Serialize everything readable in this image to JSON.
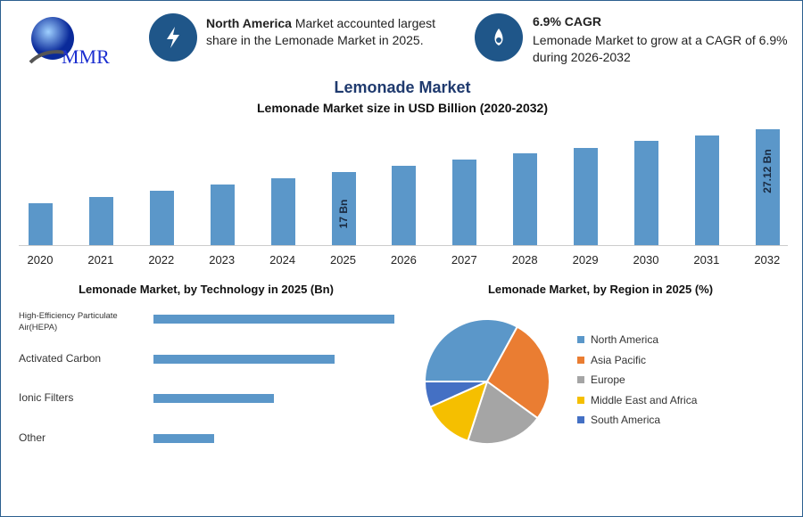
{
  "logo": {
    "text": "MMR"
  },
  "info1": {
    "bold": "North America",
    "text": " Market accounted largest share in the Lemonade Market in 2025.",
    "icon": "lightning-icon"
  },
  "info2": {
    "bold": "6.9% CAGR",
    "text": "Lemonade Market to grow at a CAGR of 6.9% during 2026-2032",
    "icon": "flame-drop-icon"
  },
  "chart_data": [
    {
      "type": "bar",
      "title": "Lemonade Market",
      "subtitle": "Lemonade Market size in USD Billion (2020-2032)",
      "categories": [
        "2020",
        "2021",
        "2022",
        "2023",
        "2024",
        "2025",
        "2026",
        "2027",
        "2028",
        "2029",
        "2030",
        "2031",
        "2032"
      ],
      "values": [
        9.8,
        11.2,
        12.7,
        14.2,
        15.6,
        17,
        18.5,
        20.0,
        21.5,
        22.7,
        24.4,
        25.6,
        27.12
      ],
      "data_labels": {
        "2025": "17 Bn",
        "2032": "27.12 Bn"
      },
      "color": "#5b97c9",
      "ylim": [
        0,
        30
      ]
    },
    {
      "type": "bar",
      "orientation": "horizontal",
      "title": "Lemonade Market, by Technology in 2025 (Bn)",
      "categories": [
        "High-Efficiency Particulate Air(HEPA)",
        "Activated Carbon",
        "Ionic Filters",
        "Other"
      ],
      "values": [
        4,
        3,
        2,
        1
      ],
      "color": "#5b97c9"
    },
    {
      "type": "pie",
      "title": "Lemonade Market, by Region in 2025 (%)",
      "labels": [
        "North America",
        "Asia Pacific",
        "Europe",
        "Middle East and Africa",
        "South America"
      ],
      "values": [
        33,
        27,
        20,
        13.3,
        6.7
      ],
      "colors": [
        "#5b97c9",
        "#ea7d32",
        "#a5a5a5",
        "#f5bf00",
        "#4470c4"
      ],
      "legend": "right"
    }
  ]
}
